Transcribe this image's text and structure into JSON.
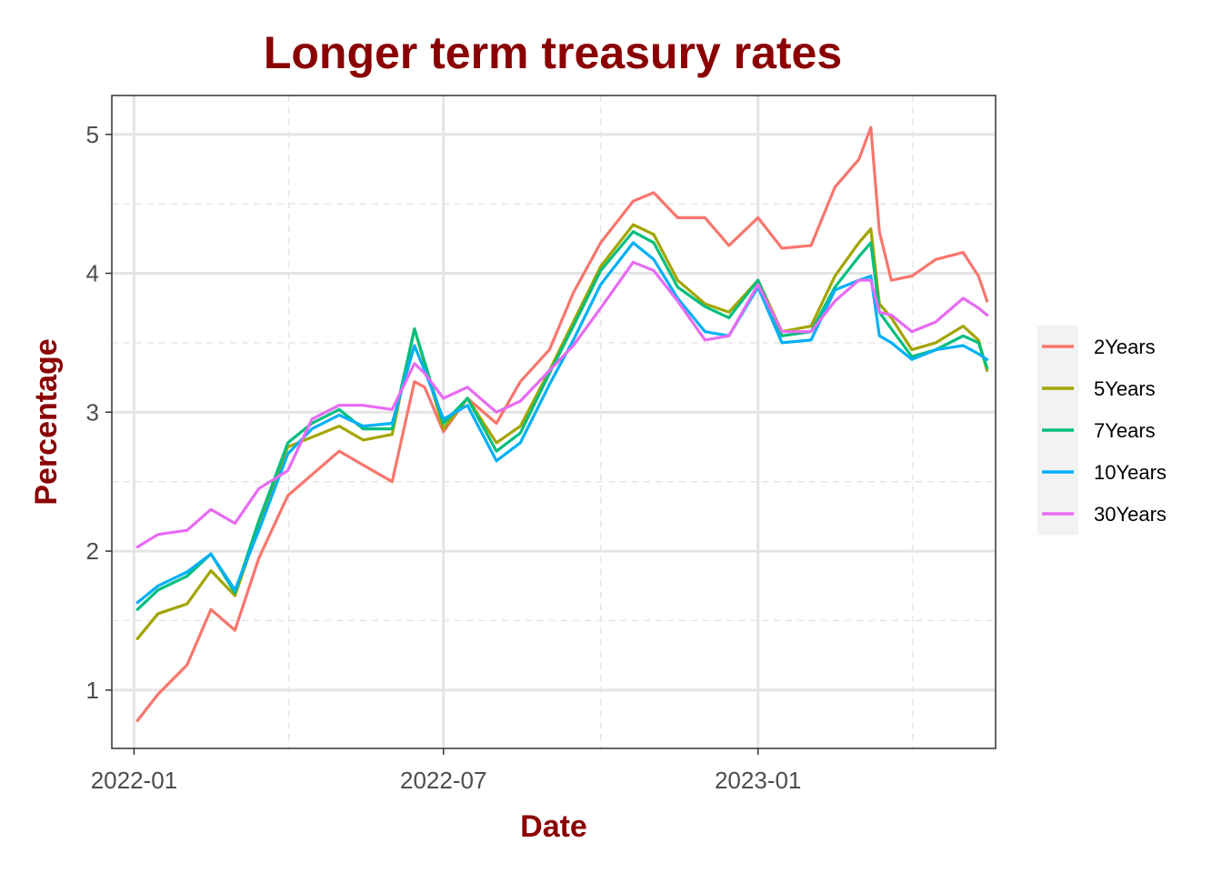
{
  "chart_data": {
    "type": "line",
    "title": "Longer term treasury rates",
    "xlabel": "Date",
    "ylabel": "Percentage",
    "x_ticks": [
      "2022-01",
      "2022-07",
      "2023-01"
    ],
    "y_ticks": [
      "1",
      "2",
      "3",
      "4",
      "5"
    ],
    "xlim": [
      "2021-12-19",
      "2023-05-20"
    ],
    "ylim": [
      0.58,
      5.28
    ],
    "grid": true,
    "legend_position": "right",
    "dates": [
      "2022-01-03",
      "2022-01-15",
      "2022-02-01",
      "2022-02-15",
      "2022-03-01",
      "2022-03-15",
      "2022-04-01",
      "2022-04-15",
      "2022-05-01",
      "2022-05-15",
      "2022-06-01",
      "2022-06-14",
      "2022-06-20",
      "2022-07-01",
      "2022-07-15",
      "2022-08-01",
      "2022-08-15",
      "2022-09-01",
      "2022-09-15",
      "2022-10-01",
      "2022-10-20",
      "2022-11-01",
      "2022-11-15",
      "2022-12-01",
      "2022-12-15",
      "2023-01-01",
      "2023-01-15",
      "2023-02-01",
      "2023-02-15",
      "2023-03-01",
      "2023-03-08",
      "2023-03-13",
      "2023-03-20",
      "2023-04-01",
      "2023-04-15",
      "2023-05-01",
      "2023-05-10",
      "2023-05-15"
    ],
    "series": [
      {
        "name": "2Years",
        "color": "#F8766D",
        "values": [
          0.78,
          0.97,
          1.18,
          1.58,
          1.43,
          1.95,
          2.4,
          2.55,
          2.72,
          2.62,
          2.5,
          3.22,
          3.18,
          2.86,
          3.1,
          2.92,
          3.22,
          3.45,
          3.86,
          4.22,
          4.52,
          4.58,
          4.4,
          4.4,
          4.2,
          4.4,
          4.18,
          4.2,
          4.62,
          4.82,
          5.05,
          4.3,
          3.95,
          3.98,
          4.1,
          4.15,
          3.98,
          3.8
        ]
      },
      {
        "name": "5Years",
        "color": "#A3A500",
        "values": [
          1.37,
          1.55,
          1.62,
          1.86,
          1.68,
          2.18,
          2.75,
          2.82,
          2.9,
          2.8,
          2.84,
          3.6,
          3.35,
          2.88,
          3.1,
          2.78,
          2.9,
          3.3,
          3.65,
          4.05,
          4.35,
          4.28,
          3.95,
          3.78,
          3.72,
          3.95,
          3.58,
          3.62,
          3.98,
          4.22,
          4.32,
          3.78,
          3.68,
          3.45,
          3.5,
          3.62,
          3.52,
          3.3
        ]
      },
      {
        "name": "7Years",
        "color": "#00BF7D",
        "values": [
          1.58,
          1.72,
          1.82,
          1.98,
          1.7,
          2.22,
          2.78,
          2.92,
          3.02,
          2.88,
          2.88,
          3.6,
          3.36,
          2.92,
          3.1,
          2.72,
          2.85,
          3.28,
          3.62,
          4.02,
          4.3,
          4.22,
          3.9,
          3.76,
          3.68,
          3.95,
          3.55,
          3.58,
          3.9,
          4.12,
          4.22,
          3.72,
          3.6,
          3.4,
          3.45,
          3.55,
          3.5,
          3.32
        ]
      },
      {
        "name": "10Years",
        "color": "#00B0F6",
        "values": [
          1.63,
          1.75,
          1.85,
          1.98,
          1.72,
          2.15,
          2.7,
          2.88,
          2.98,
          2.9,
          2.92,
          3.48,
          3.3,
          2.95,
          3.05,
          2.65,
          2.78,
          3.2,
          3.52,
          3.92,
          4.22,
          4.1,
          3.82,
          3.58,
          3.55,
          3.9,
          3.5,
          3.52,
          3.88,
          3.95,
          3.98,
          3.55,
          3.5,
          3.38,
          3.45,
          3.48,
          3.42,
          3.38
        ]
      },
      {
        "name": "30Years",
        "color": "#E76BF3",
        "values": [
          2.03,
          2.12,
          2.15,
          2.3,
          2.2,
          2.45,
          2.58,
          2.95,
          3.05,
          3.05,
          3.02,
          3.35,
          3.28,
          3.1,
          3.18,
          3.0,
          3.08,
          3.3,
          3.48,
          3.75,
          4.08,
          4.02,
          3.8,
          3.52,
          3.55,
          3.92,
          3.58,
          3.58,
          3.8,
          3.95,
          3.95,
          3.72,
          3.7,
          3.58,
          3.65,
          3.82,
          3.75,
          3.7
        ]
      }
    ]
  }
}
